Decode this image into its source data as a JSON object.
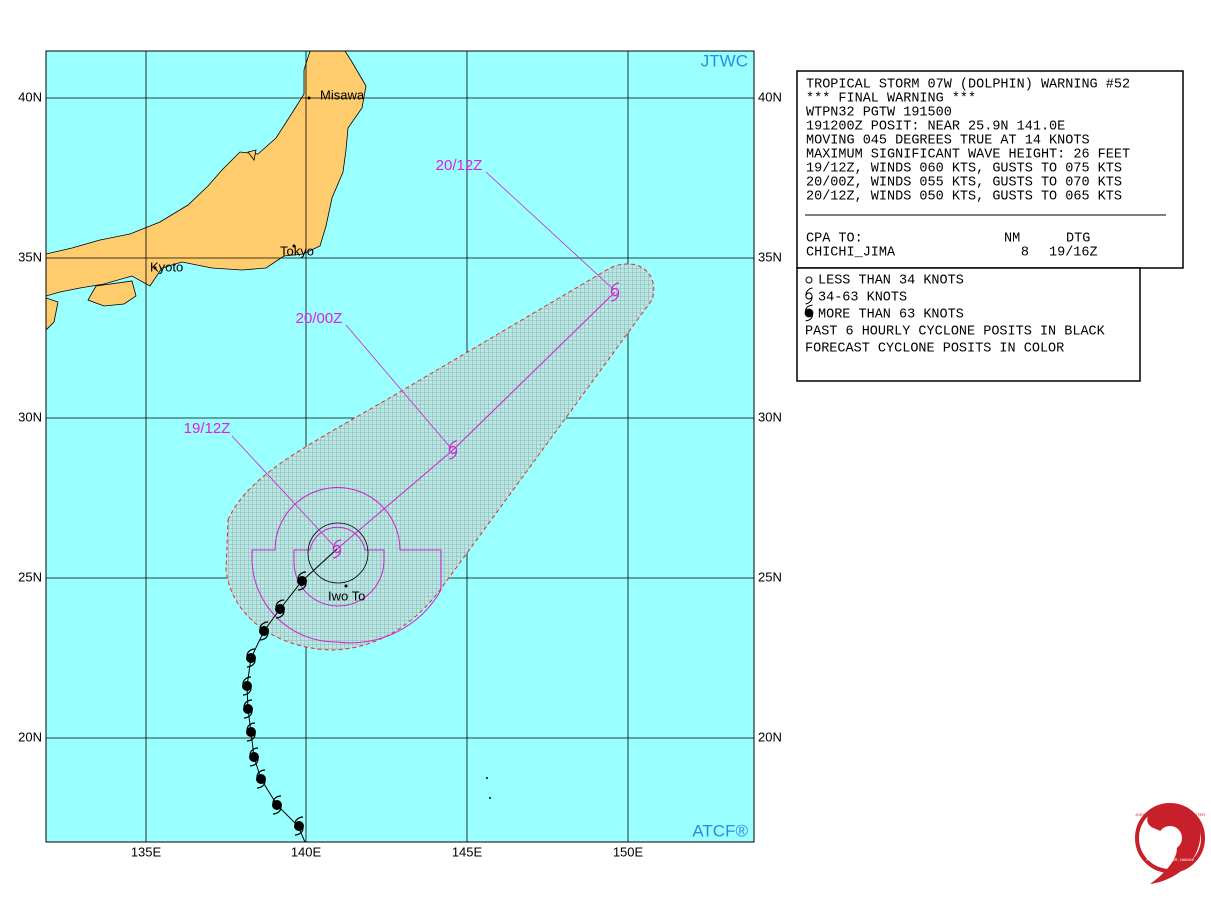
{
  "header": {
    "agency": "JTWC",
    "footer": "ATCF®"
  },
  "lat_labels": [
    "40N",
    "35N",
    "30N",
    "25N",
    "20N"
  ],
  "lon_labels": [
    "135E",
    "140E",
    "145E",
    "150E"
  ],
  "places": [
    "Misawa",
    "Tokyo",
    "Kyoto",
    "Iwo To"
  ],
  "forecast_labels": [
    "19/12Z",
    "20/00Z",
    "20/12Z"
  ],
  "warning": {
    "lines": [
      "TROPICAL STORM 07W (DOLPHIN) WARNING #52",
      "*** FINAL WARNING ***",
      "WTPN32 PGTW 191500",
      "191200Z POSIT: NEAR 25.9N 141.0E",
      "MOVING 045 DEGREES TRUE AT 14 KNOTS",
      "MAXIMUM SIGNIFICANT WAVE HEIGHT: 26 FEET",
      "19/12Z, WINDS 060 KTS, GUSTS TO 075 KTS",
      "20/00Z, WINDS 055 KTS, GUSTS TO 070 KTS",
      "20/12Z, WINDS 050 KTS, GUSTS TO 065 KTS"
    ],
    "cpa_header": [
      "CPA TO:",
      "NM",
      "DTG"
    ],
    "cpa_row": [
      "CHICHI_JIMA",
      "8",
      "19/16Z"
    ]
  },
  "legend": {
    "lines": [
      "LESS THAN 34 KNOTS",
      "34-63 KNOTS",
      "MORE THAN 63 KNOTS",
      "PAST 6 HOURLY CYCLONE POSITS IN BLACK",
      "FORECAST CYCLONE POSITS IN COLOR"
    ]
  },
  "logo": {
    "lines": [
      "JOINT TYPHOON WARNING CENTER",
      "PEARL HARBOR, HAWAII"
    ]
  }
}
